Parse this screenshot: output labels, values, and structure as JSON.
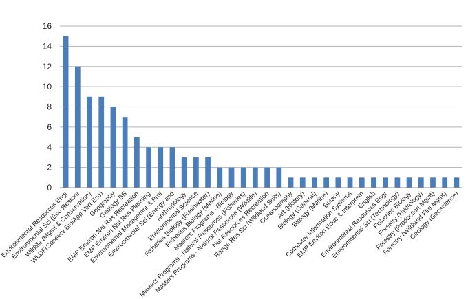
{
  "chart_data": {
    "type": "bar",
    "title": "",
    "xlabel": "",
    "ylabel": "",
    "ylim": [
      0,
      16
    ],
    "yticks": [
      0,
      2,
      4,
      6,
      8,
      10,
      12,
      14,
      16
    ],
    "grid": true,
    "legend": "none",
    "bar_color": "#4a7ebb",
    "grid_color": "#b3b3b3",
    "categories": [
      "Environmental Resources Engr",
      "Environmental Sci (Eco Restore",
      "Wildlife (Mgmt & Conservation)",
      "WLDF(Conserv Bio/App Vert Eco)",
      "Geography",
      "Geology BS",
      "EMP Environ Nat Res Recreation",
      "EMP Environ Nat Res Planning",
      "Environmental Managemnt & Prot",
      "Environmental Sci (Energy and",
      "Anthropology",
      "Environmental Science",
      "Fisheries Biology (Freshwater)",
      "Fisheries Biology (Marine)",
      "Masters Programs - Biology",
      "Masters Programs - Natural Resources (Fisheries)",
      "Masters Programs - Natural Resources (Wildlife)",
      "Nat Resources Recreation",
      "Range Res Sci (Wildland Soils)",
      "Oceanography",
      "Art (History)",
      "Biology (General)",
      "Biology (Marine)",
      "Botany",
      "Computer Information Systems",
      "EMP Environ Educ & Interpretn",
      "English",
      "Environmental Resources Engr",
      "Environmental Sci (Technology)",
      "Fisheries Biology",
      "Forestry (Hydrology)",
      "Forestry (Production Mgmt)",
      "Forestry (Wildland Fire Mgmt)",
      "Geology (Geoscience)"
    ],
    "values": [
      15,
      12,
      9,
      9,
      8,
      7,
      5,
      4,
      4,
      4,
      3,
      3,
      3,
      2,
      2,
      2,
      2,
      2,
      2,
      1,
      1,
      1,
      1,
      1,
      1,
      1,
      1,
      1,
      1,
      1,
      1,
      1,
      1,
      1
    ]
  }
}
